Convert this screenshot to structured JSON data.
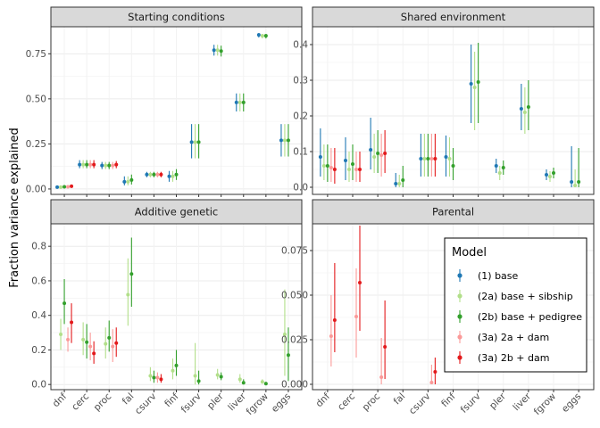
{
  "chart_data": {
    "type": "errorbar",
    "ylabel": "Fraction variance explained",
    "categories": [
      "dnf",
      "cerc",
      "proc",
      "fal",
      "csurv",
      "finf",
      "fsurv",
      "pler",
      "liver",
      "fgrow",
      "eggs"
    ],
    "legend": {
      "title": "Model",
      "placement": "inside-bottom-right",
      "entries": [
        {
          "label": "(1) base",
          "color": "#1f78b4"
        },
        {
          "label": "(2a) base + sibship",
          "color": "#b2df8a"
        },
        {
          "label": "(2b) base + pedigree",
          "color": "#33a02c"
        },
        {
          "label": "(3a) 2a + dam",
          "color": "#fb9a99"
        },
        {
          "label": "(3a) 2b + dam",
          "color": "#e31a1c"
        }
      ]
    },
    "grid": true,
    "panels": [
      {
        "title": "Starting conditions",
        "ylim": [
          -0.03,
          0.9
        ],
        "yticks": [
          0.0,
          0.25,
          0.5,
          0.75
        ],
        "ytick_labels": [
          "0.00",
          "0.25",
          "0.50",
          "0.75"
        ],
        "show_x_labels": false,
        "series": [
          {
            "model": 0,
            "points": [
              [
                0.01,
                0.005,
                0.018
              ],
              [
                0.135,
                0.115,
                0.16
              ],
              [
                0.13,
                0.11,
                0.15
              ],
              [
                0.04,
                0.02,
                0.07
              ],
              [
                0.08,
                0.065,
                0.095
              ],
              [
                0.07,
                0.04,
                0.1
              ],
              [
                0.26,
                0.17,
                0.36
              ],
              [
                0.77,
                0.74,
                0.8
              ],
              [
                0.48,
                0.43,
                0.53
              ],
              [
                0.855,
                0.84,
                0.865
              ],
              [
                0.27,
                0.18,
                0.36
              ]
            ]
          },
          {
            "model": 1,
            "points": [
              [
                0.01,
                0.005,
                0.018
              ],
              [
                0.135,
                0.115,
                0.16
              ],
              [
                0.13,
                0.11,
                0.15
              ],
              [
                0.04,
                0.02,
                0.07
              ],
              [
                0.08,
                0.065,
                0.095
              ],
              [
                0.07,
                0.04,
                0.1
              ],
              [
                0.26,
                0.17,
                0.36
              ],
              [
                0.77,
                0.74,
                0.8
              ],
              [
                0.48,
                0.43,
                0.53
              ],
              [
                0.85,
                0.835,
                0.86
              ],
              [
                0.27,
                0.18,
                0.36
              ]
            ]
          },
          {
            "model": 2,
            "points": [
              [
                0.012,
                0.005,
                0.02
              ],
              [
                0.135,
                0.115,
                0.16
              ],
              [
                0.13,
                0.11,
                0.15
              ],
              [
                0.05,
                0.025,
                0.08
              ],
              [
                0.08,
                0.065,
                0.095
              ],
              [
                0.08,
                0.05,
                0.11
              ],
              [
                0.26,
                0.17,
                0.36
              ],
              [
                0.765,
                0.735,
                0.795
              ],
              [
                0.48,
                0.43,
                0.53
              ],
              [
                0.85,
                0.835,
                0.86
              ],
              [
                0.27,
                0.18,
                0.36
              ]
            ]
          },
          {
            "model": 3,
            "points": [
              [
                0.012,
                0.005,
                0.02
              ],
              [
                0.135,
                0.115,
                0.16
              ],
              [
                0.13,
                0.11,
                0.15
              ],
              null,
              [
                0.08,
                0.065,
                0.095
              ],
              null,
              null,
              null,
              null,
              null,
              null
            ]
          },
          {
            "model": 4,
            "points": [
              [
                0.015,
                0.007,
                0.025
              ],
              [
                0.135,
                0.115,
                0.16
              ],
              [
                0.135,
                0.115,
                0.155
              ],
              null,
              [
                0.08,
                0.065,
                0.095
              ],
              null,
              null,
              null,
              null,
              null,
              null
            ]
          }
        ]
      },
      {
        "title": "Shared environment",
        "ylim": [
          -0.02,
          0.45
        ],
        "yticks": [
          0.0,
          0.1,
          0.2,
          0.3,
          0.4
        ],
        "ytick_labels": [
          "0.0",
          "0.1",
          "0.2",
          "0.3",
          "0.4"
        ],
        "show_x_labels": false,
        "series": [
          {
            "model": 0,
            "points": [
              [
                0.085,
                0.03,
                0.165
              ],
              [
                0.075,
                0.02,
                0.14
              ],
              [
                0.105,
                0.05,
                0.195
              ],
              [
                0.01,
                0.0,
                0.04
              ],
              [
                0.08,
                0.03,
                0.15
              ],
              [
                0.085,
                0.03,
                0.145
              ],
              [
                0.29,
                0.18,
                0.4
              ],
              [
                0.06,
                0.04,
                0.08
              ],
              [
                0.22,
                0.16,
                0.29
              ],
              [
                0.035,
                0.02,
                0.05
              ],
              [
                0.015,
                0.0,
                0.115
              ]
            ]
          },
          {
            "model": 1,
            "points": [
              [
                0.06,
                0.02,
                0.12
              ],
              [
                0.05,
                0.015,
                0.1
              ],
              [
                0.085,
                0.04,
                0.15
              ],
              [
                0.01,
                0.0,
                0.035
              ],
              [
                0.08,
                0.03,
                0.15
              ],
              [
                0.08,
                0.03,
                0.14
              ],
              [
                0.28,
                0.16,
                0.38
              ],
              [
                0.04,
                0.02,
                0.06
              ],
              [
                0.21,
                0.15,
                0.28
              ],
              [
                0.03,
                0.015,
                0.045
              ],
              [
                0.005,
                0.0,
                0.05
              ]
            ]
          },
          {
            "model": 2,
            "points": [
              [
                0.06,
                0.015,
                0.12
              ],
              [
                0.065,
                0.02,
                0.12
              ],
              [
                0.095,
                0.04,
                0.16
              ],
              [
                0.02,
                0.0,
                0.06
              ],
              [
                0.08,
                0.03,
                0.15
              ],
              [
                0.06,
                0.02,
                0.11
              ],
              [
                0.295,
                0.18,
                0.405
              ],
              [
                0.055,
                0.035,
                0.075
              ],
              [
                0.225,
                0.16,
                0.3
              ],
              [
                0.04,
                0.025,
                0.055
              ],
              [
                0.015,
                0.0,
                0.11
              ]
            ]
          },
          {
            "model": 3,
            "points": [
              [
                0.055,
                0.015,
                0.11
              ],
              [
                0.05,
                0.015,
                0.1
              ],
              [
                0.09,
                0.03,
                0.15
              ],
              null,
              [
                0.08,
                0.03,
                0.15
              ],
              null,
              null,
              null,
              null,
              null,
              null
            ]
          },
          {
            "model": 4,
            "points": [
              [
                0.05,
                0.01,
                0.11
              ],
              [
                0.05,
                0.015,
                0.1
              ],
              [
                0.095,
                0.04,
                0.16
              ],
              null,
              [
                0.08,
                0.03,
                0.15
              ],
              null,
              null,
              null,
              null,
              null,
              null
            ]
          }
        ]
      },
      {
        "title": "Additive genetic",
        "ylim": [
          -0.03,
          0.93
        ],
        "yticks": [
          0.0,
          0.2,
          0.4,
          0.6,
          0.8
        ],
        "ytick_labels": [
          "0.0",
          "0.2",
          "0.4",
          "0.6",
          "0.8"
        ],
        "show_x_labels": true,
        "series": [
          {
            "model": 0,
            "points": [
              null,
              null,
              null,
              null,
              null,
              null,
              null,
              null,
              null,
              null,
              null
            ]
          },
          {
            "model": 1,
            "points": [
              [
                0.29,
                0.2,
                0.38
              ],
              [
                0.26,
                0.17,
                0.36
              ],
              [
                0.235,
                0.15,
                0.33
              ],
              [
                0.52,
                0.34,
                0.73
              ],
              [
                0.05,
                0.02,
                0.1
              ],
              [
                0.08,
                0.03,
                0.15
              ],
              [
                0.05,
                0.0,
                0.24
              ],
              [
                0.055,
                0.03,
                0.09
              ],
              [
                0.03,
                0.01,
                0.06
              ],
              [
                0.015,
                0.005,
                0.03
              ],
              [
                0.29,
                0.05,
                0.55
              ]
            ]
          },
          {
            "model": 2,
            "points": [
              [
                0.47,
                0.35,
                0.61
              ],
              [
                0.245,
                0.15,
                0.35
              ],
              [
                0.27,
                0.19,
                0.37
              ],
              [
                0.64,
                0.45,
                0.85
              ],
              [
                0.04,
                0.01,
                0.08
              ],
              [
                0.11,
                0.05,
                0.2
              ],
              [
                0.02,
                0.0,
                0.08
              ],
              [
                0.045,
                0.025,
                0.07
              ],
              [
                0.01,
                0.0,
                0.03
              ],
              [
                0.005,
                0.0,
                0.015
              ],
              [
                0.17,
                0.02,
                0.33
              ]
            ]
          },
          {
            "model": 3,
            "points": [
              [
                0.26,
                0.19,
                0.33
              ],
              [
                0.22,
                0.14,
                0.3
              ],
              [
                0.22,
                0.13,
                0.32
              ],
              null,
              [
                0.04,
                0.01,
                0.07
              ],
              null,
              null,
              null,
              null,
              null,
              null
            ]
          },
          {
            "model": 4,
            "points": [
              [
                0.36,
                0.24,
                0.47
              ],
              [
                0.18,
                0.12,
                0.25
              ],
              [
                0.24,
                0.16,
                0.33
              ],
              null,
              [
                0.03,
                0.01,
                0.06
              ],
              null,
              null,
              null,
              null,
              null,
              null
            ]
          }
        ]
      },
      {
        "title": "Parental",
        "ylim": [
          -0.003,
          0.09
        ],
        "yticks": [
          0.0,
          0.025,
          0.05,
          0.075
        ],
        "ytick_labels": [
          "0.000",
          "0.025",
          "0.050",
          "0.075"
        ],
        "show_x_labels": true,
        "series": [
          {
            "model": 0,
            "points": [
              null,
              null,
              null,
              null,
              null,
              null,
              null,
              null,
              null,
              null,
              null
            ]
          },
          {
            "model": 1,
            "points": [
              null,
              null,
              null,
              null,
              null,
              null,
              null,
              null,
              null,
              null,
              null
            ]
          },
          {
            "model": 2,
            "points": [
              null,
              null,
              null,
              null,
              null,
              null,
              null,
              null,
              null,
              null,
              null
            ]
          },
          {
            "model": 3,
            "points": [
              [
                0.027,
                0.01,
                0.05
              ],
              [
                0.038,
                0.015,
                0.065
              ],
              [
                0.004,
                0.0,
                0.026
              ],
              null,
              [
                0.001,
                0.0,
                0.011
              ],
              null,
              null,
              null,
              null,
              null,
              null
            ]
          },
          {
            "model": 4,
            "points": [
              [
                0.036,
                0.018,
                0.068
              ],
              [
                0.057,
                0.03,
                0.089
              ],
              [
                0.021,
                0.003,
                0.047
              ],
              null,
              [
                0.007,
                0.0,
                0.015
              ],
              null,
              null,
              null,
              null,
              null,
              null
            ]
          }
        ]
      }
    ]
  }
}
